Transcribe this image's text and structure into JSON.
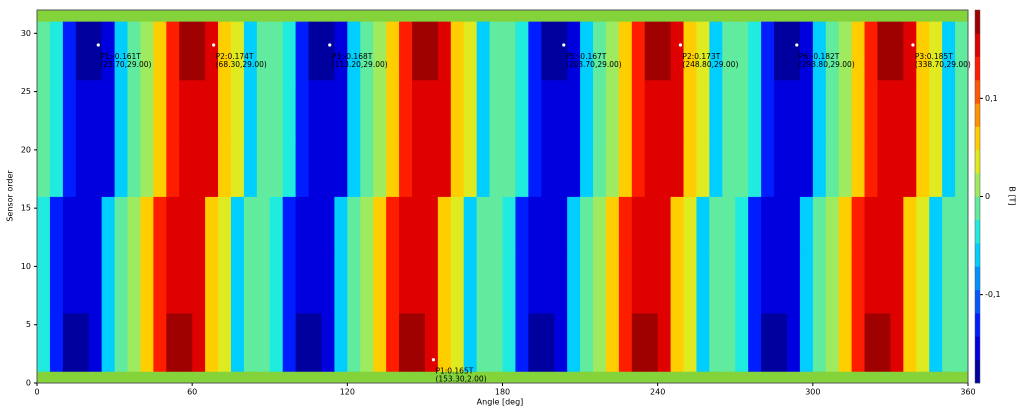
{
  "chart_data": {
    "type": "heatmap",
    "xlabel": "Angle [deg]",
    "ylabel": "Sensor order",
    "colorbar_label": "B [T]",
    "xlim": [
      0,
      360
    ],
    "ylim": [
      0,
      32
    ],
    "xticks": [
      0,
      60,
      120,
      180,
      240,
      300,
      360
    ],
    "yticks": [
      0,
      5,
      10,
      15,
      20,
      25,
      30
    ],
    "zlim": [
      -0.19,
      0.19
    ],
    "zticks": [
      {
        "value": -0.1,
        "label": "-0,1"
      },
      0,
      {
        "value": 0.1,
        "label": "0,1"
      }
    ],
    "colormap": "jet",
    "x": [
      2.5,
      7.5,
      12.5,
      17.5,
      22.5,
      27.5,
      32.5,
      37.5,
      42.5,
      47.5,
      52.5,
      57.5,
      62.5,
      67.5,
      72.5,
      77.5,
      82.5,
      87.5,
      92.5,
      97.5,
      102.5,
      107.5,
      112.5,
      117.5,
      122.5,
      127.5,
      132.5,
      137.5,
      142.5,
      147.5,
      152.5,
      157.5,
      162.5,
      167.5,
      172.5,
      177.5,
      182.5,
      187.5,
      192.5,
      197.5,
      202.5,
      207.5,
      212.5,
      217.5,
      222.5,
      227.5,
      232.5,
      237.5,
      242.5,
      247.5,
      252.5,
      257.5,
      262.5,
      267.5,
      272.5,
      277.5,
      282.5,
      287.5,
      292.5,
      297.5,
      302.5,
      307.5,
      312.5,
      317.5,
      322.5,
      327.5,
      332.5,
      337.5,
      342.5,
      347.5,
      352.5,
      357.5
    ],
    "y": [
      3.5,
      8.5,
      13.5,
      18.5,
      23.5,
      28.5
    ],
    "z": [
      [
        -0.04,
        -0.14,
        -0.18,
        -0.18,
        -0.16,
        -0.06,
        -0.02,
        0.02,
        0.07,
        0.14,
        0.18,
        0.18,
        0.16,
        0.07,
        0.03,
        -0.05,
        -0.02,
        0.0,
        -0.04,
        -0.14,
        -0.18,
        -0.18,
        -0.16,
        -0.06,
        -0.02,
        0.02,
        0.07,
        0.14,
        0.18,
        0.18,
        0.16,
        0.07,
        0.03,
        -0.05,
        -0.02,
        0.0,
        -0.04,
        -0.14,
        -0.18,
        -0.18,
        -0.16,
        -0.06,
        -0.02,
        0.02,
        0.07,
        0.14,
        0.18,
        0.18,
        0.16,
        0.07,
        0.03,
        -0.05,
        -0.02,
        0.0,
        -0.04,
        -0.14,
        -0.18,
        -0.18,
        -0.16,
        -0.06,
        -0.02,
        0.02,
        0.07,
        0.14,
        0.18,
        0.18,
        0.16,
        0.07,
        0.03,
        -0.05,
        -0.02,
        0.0
      ],
      [
        -0.03,
        -0.12,
        -0.16,
        -0.16,
        -0.15,
        -0.06,
        -0.02,
        0.02,
        0.06,
        0.12,
        0.16,
        0.16,
        0.15,
        0.07,
        0.03,
        -0.05,
        -0.02,
        0.0,
        -0.03,
        -0.12,
        -0.16,
        -0.16,
        -0.15,
        -0.06,
        -0.02,
        0.02,
        0.06,
        0.12,
        0.16,
        0.16,
        0.15,
        0.07,
        0.03,
        -0.05,
        -0.02,
        0.0,
        -0.03,
        -0.12,
        -0.16,
        -0.16,
        -0.15,
        -0.06,
        -0.02,
        0.02,
        0.06,
        0.12,
        0.16,
        0.16,
        0.15,
        0.07,
        0.03,
        -0.05,
        -0.02,
        0.0,
        -0.03,
        -0.12,
        -0.16,
        -0.16,
        -0.15,
        -0.06,
        -0.02,
        0.02,
        0.06,
        0.12,
        0.16,
        0.16,
        0.15,
        0.07,
        0.03,
        -0.05,
        -0.02,
        0.0
      ],
      [
        -0.03,
        -0.12,
        -0.16,
        -0.16,
        -0.15,
        -0.06,
        -0.02,
        0.02,
        0.06,
        0.12,
        0.16,
        0.16,
        0.15,
        0.07,
        0.03,
        -0.05,
        -0.02,
        0.0,
        -0.03,
        -0.12,
        -0.16,
        -0.16,
        -0.15,
        -0.06,
        -0.02,
        0.02,
        0.06,
        0.12,
        0.16,
        0.16,
        0.15,
        0.07,
        0.03,
        -0.05,
        -0.02,
        0.0,
        -0.03,
        -0.12,
        -0.16,
        -0.16,
        -0.15,
        -0.06,
        -0.02,
        0.02,
        0.06,
        0.12,
        0.16,
        0.16,
        0.15,
        0.07,
        0.03,
        -0.05,
        -0.02,
        0.0,
        -0.03,
        -0.12,
        -0.16,
        -0.16,
        -0.15,
        -0.06,
        -0.02,
        0.02,
        0.06,
        0.12,
        0.16,
        0.16,
        0.15,
        0.07,
        0.03,
        -0.05,
        -0.02,
        0.0
      ],
      [
        0.0,
        -0.03,
        -0.12,
        -0.16,
        -0.16,
        -0.15,
        -0.06,
        -0.02,
        0.02,
        0.06,
        0.12,
        0.16,
        0.16,
        0.15,
        0.07,
        0.03,
        -0.05,
        -0.02,
        0.0,
        -0.03,
        -0.12,
        -0.16,
        -0.16,
        -0.15,
        -0.06,
        -0.02,
        0.02,
        0.06,
        0.12,
        0.16,
        0.16,
        0.15,
        0.07,
        0.03,
        -0.05,
        -0.02,
        0.0,
        -0.03,
        -0.12,
        -0.16,
        -0.16,
        -0.15,
        -0.06,
        -0.02,
        0.02,
        0.06,
        0.12,
        0.16,
        0.16,
        0.15,
        0.07,
        0.03,
        -0.05,
        -0.02,
        0.0,
        -0.03,
        -0.12,
        -0.16,
        -0.16,
        -0.15,
        -0.06,
        -0.02,
        0.02,
        0.06,
        0.12,
        0.16,
        0.16,
        0.15,
        0.07,
        0.03,
        -0.05,
        -0.02
      ],
      [
        0.0,
        -0.03,
        -0.12,
        -0.16,
        -0.16,
        -0.15,
        -0.06,
        -0.02,
        0.02,
        0.06,
        0.12,
        0.16,
        0.16,
        0.15,
        0.07,
        0.03,
        -0.05,
        -0.02,
        0.0,
        -0.03,
        -0.12,
        -0.16,
        -0.16,
        -0.15,
        -0.06,
        -0.02,
        0.02,
        0.06,
        0.12,
        0.16,
        0.16,
        0.15,
        0.07,
        0.03,
        -0.05,
        -0.02,
        0.0,
        -0.03,
        -0.12,
        -0.16,
        -0.16,
        -0.15,
        -0.06,
        -0.02,
        0.02,
        0.06,
        0.12,
        0.16,
        0.16,
        0.15,
        0.07,
        0.03,
        -0.05,
        -0.02,
        0.0,
        -0.03,
        -0.12,
        -0.16,
        -0.16,
        -0.15,
        -0.06,
        -0.02,
        0.02,
        0.06,
        0.12,
        0.16,
        0.16,
        0.15,
        0.07,
        0.03,
        -0.05,
        -0.02
      ],
      [
        0.0,
        -0.04,
        -0.14,
        -0.18,
        -0.18,
        -0.16,
        -0.06,
        -0.02,
        0.02,
        0.07,
        0.14,
        0.18,
        0.18,
        0.16,
        0.07,
        0.03,
        -0.05,
        -0.02,
        0.0,
        -0.04,
        -0.14,
        -0.18,
        -0.18,
        -0.16,
        -0.06,
        -0.02,
        0.02,
        0.07,
        0.14,
        0.18,
        0.18,
        0.16,
        0.07,
        0.03,
        -0.05,
        -0.02,
        0.0,
        -0.04,
        -0.14,
        -0.18,
        -0.18,
        -0.16,
        -0.06,
        -0.02,
        0.02,
        0.07,
        0.14,
        0.18,
        0.18,
        0.16,
        0.07,
        0.03,
        -0.05,
        -0.02,
        0.0,
        -0.04,
        -0.14,
        -0.18,
        -0.18,
        -0.16,
        -0.06,
        -0.02,
        0.02,
        0.07,
        0.14,
        0.18,
        0.18,
        0.16,
        0.07,
        0.03,
        -0.05,
        -0.02
      ]
    ],
    "annotations": [
      {
        "x": 23.7,
        "y": 29,
        "label": "P1:-0.161T",
        "coords": "(23.70,29.00)"
      },
      {
        "x": 68.3,
        "y": 29,
        "label": "P2:0.174T",
        "coords": "(68.30,29.00)"
      },
      {
        "x": 113.2,
        "y": 29,
        "label": "P3:-0.168T",
        "coords": "(113.20,29.00)"
      },
      {
        "x": 153.3,
        "y": 2,
        "label": "P1:0.165T",
        "coords": "(153.30,2.00)"
      },
      {
        "x": 203.7,
        "y": 29,
        "label": "P5:-0.167T",
        "coords": "(203.70,29.00)"
      },
      {
        "x": 248.8,
        "y": 29,
        "label": "P2:0.173T",
        "coords": "(248.80,29.00)"
      },
      {
        "x": 293.8,
        "y": 29,
        "label": "P6:-0.182T",
        "coords": "(293.80,29.00)"
      },
      {
        "x": 338.7,
        "y": 29,
        "label": "P3:0.185T",
        "coords": "(338.70,29.00)"
      }
    ]
  }
}
